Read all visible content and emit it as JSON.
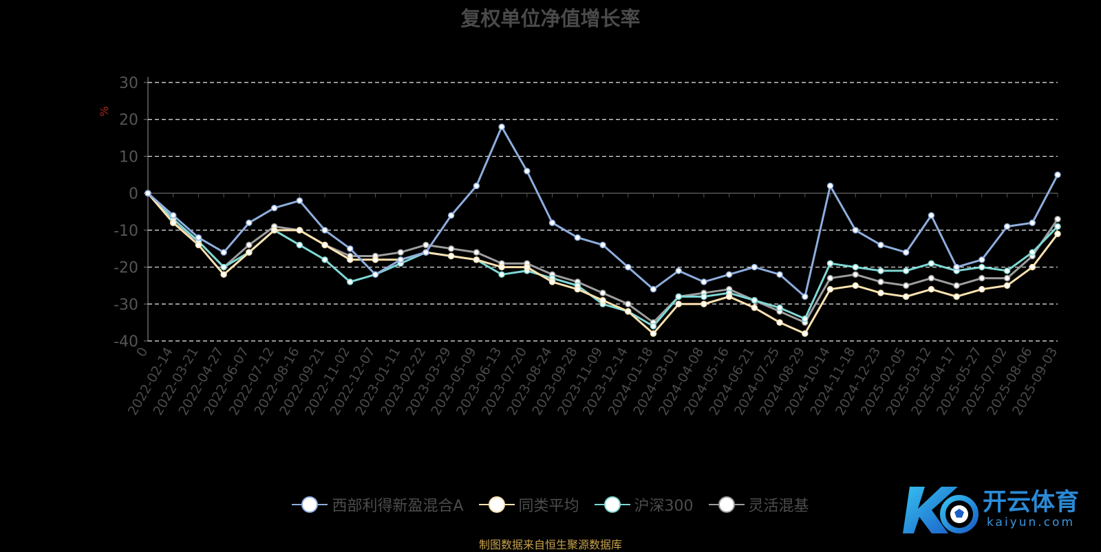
{
  "title": "复权单位净值增长率",
  "source_note": "制图数据来自恒生聚源数据库",
  "watermark": {
    "name": "开云体育",
    "url": "kaiyun.com",
    "logo_letters": "K"
  },
  "chart_data": {
    "type": "line",
    "ylabel": "%",
    "ylim": [
      -40,
      30
    ],
    "yticks": [
      30,
      20,
      10,
      0,
      -10,
      -20,
      -30,
      -40
    ],
    "grid": true,
    "legend_position": "bottom",
    "categories": [
      "0",
      "2022-02-14",
      "2022-03-21",
      "2022-04-27",
      "2022-06-07",
      "2022-07-12",
      "2022-08-16",
      "2022-09-21",
      "2022-11-02",
      "2022-12-07",
      "2023-01-11",
      "2023-02-22",
      "2023-03-29",
      "2023-05-09",
      "2023-06-13",
      "2023-07-20",
      "2023-08-24",
      "2023-09-28",
      "2023-11-09",
      "2023-12-14",
      "2024-01-18",
      "2024-03-01",
      "2024-04-08",
      "2024-05-16",
      "2024-06-21",
      "2024-07-25",
      "2024-08-29",
      "2024-10-14",
      "2024-11-18",
      "2024-12-23",
      "2025-02-05",
      "2025-03-12",
      "2025-04-17",
      "2025-05-27",
      "2025-07-02",
      "2025-08-06",
      "2025-09-03"
    ],
    "series": [
      {
        "name": "西部利得新盈混合A",
        "color": "#8eaede",
        "values": [
          0,
          -6,
          -12,
          -16,
          -8,
          -4,
          -2,
          -10,
          -15,
          -22,
          -18,
          -16,
          -6,
          2,
          18,
          6,
          -8,
          -12,
          -14,
          -20,
          -26,
          -21,
          -24,
          -22,
          -20,
          -22,
          -28,
          2,
          -10,
          -14,
          -16,
          -6,
          -20,
          -18,
          -9,
          -8,
          5
        ]
      },
      {
        "name": "同类平均",
        "color": "#fde2b0",
        "values": [
          0,
          -8,
          -14,
          -22,
          -16,
          -10,
          -10,
          -14,
          -18,
          -18,
          -18,
          -16,
          -17,
          -18,
          -20,
          -20,
          -24,
          -26,
          -29,
          -32,
          -38,
          -30,
          -30,
          -28,
          -31,
          -35,
          -38,
          -26,
          -25,
          -27,
          -28,
          -26,
          -28,
          -26,
          -25,
          -20,
          -11
        ]
      },
      {
        "name": "沪深300",
        "color": "#7ed8d4",
        "values": [
          0,
          -7,
          -13,
          -20,
          -16,
          -10,
          -14,
          -18,
          -24,
          -22,
          -19,
          -16,
          -17,
          -18,
          -22,
          -21,
          -23,
          -25,
          -30,
          -32,
          -36,
          -28,
          -28,
          -27,
          -29,
          -31,
          -34,
          -19,
          -20,
          -21,
          -21,
          -19,
          -21,
          -20,
          -21,
          -16,
          -9
        ]
      },
      {
        "name": "灵活混基",
        "color": "#9e9e9e",
        "values": [
          0,
          -8,
          -13,
          -20,
          -14,
          -9,
          -10,
          -14,
          -17,
          -17,
          -16,
          -14,
          -15,
          -16,
          -19,
          -19,
          -22,
          -24,
          -27,
          -30,
          -35,
          -28,
          -27,
          -26,
          -29,
          -32,
          -35,
          -23,
          -22,
          -24,
          -25,
          -23,
          -25,
          -23,
          -23,
          -17,
          -7
        ]
      }
    ]
  },
  "legend": [
    {
      "label": "西部利得新盈混合A",
      "color": "#8eaede"
    },
    {
      "label": "同类平均",
      "color": "#fde2b0"
    },
    {
      "label": "沪深300",
      "color": "#7ed8d4"
    },
    {
      "label": "灵活混基",
      "color": "#9e9e9e"
    }
  ]
}
